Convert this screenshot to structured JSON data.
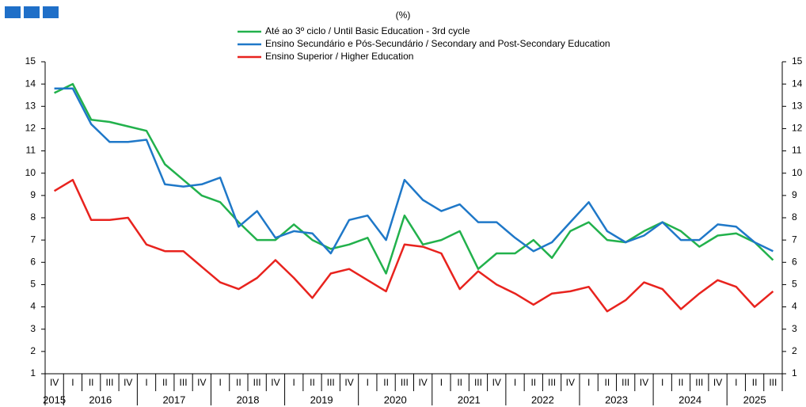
{
  "chart_data": {
    "type": "line",
    "subtitle": "(%)",
    "categories": [
      "IV",
      "I",
      "II",
      "III",
      "IV",
      "I",
      "II",
      "III",
      "IV",
      "I",
      "II",
      "III",
      "IV",
      "I",
      "II",
      "III",
      "IV",
      "I",
      "II",
      "III",
      "IV",
      "I",
      "II",
      "III",
      "IV",
      "I",
      "II",
      "III",
      "IV",
      "I",
      "II",
      "III",
      "IV",
      "I",
      "II",
      "III",
      "IV",
      "I",
      "II",
      "III"
    ],
    "years": [
      "2015",
      "2016",
      "2017",
      "2018",
      "2019",
      "2020",
      "2021",
      "2022",
      "2023",
      "2024",
      "2025"
    ],
    "series": [
      {
        "name": "Até ao 3º ciclo / Until Basic Education - 3rd cycle",
        "color": "#22b14c",
        "values": [
          13.6,
          14.0,
          12.4,
          12.3,
          12.1,
          11.9,
          10.4,
          9.7,
          9.0,
          8.7,
          7.8,
          7.0,
          7.0,
          7.7,
          7.0,
          6.6,
          6.8,
          7.1,
          5.5,
          8.1,
          6.8,
          7.0,
          7.4,
          5.7,
          6.4,
          6.4,
          7.0,
          6.2,
          7.4,
          7.8,
          7.0,
          6.9,
          7.4,
          7.8,
          7.4,
          6.7,
          7.2,
          7.3,
          6.9,
          6.1
        ]
      },
      {
        "name": "Ensino Secundário e Pós-Secundário / Secondary and Post-Secondary Education",
        "color": "#1f78c8",
        "values": [
          13.8,
          13.8,
          12.2,
          11.4,
          11.4,
          11.5,
          9.5,
          9.4,
          9.5,
          9.8,
          7.6,
          8.3,
          7.1,
          7.4,
          7.3,
          6.4,
          7.9,
          8.1,
          7.0,
          9.7,
          8.8,
          8.3,
          8.6,
          7.8,
          7.8,
          7.1,
          6.5,
          6.9,
          7.8,
          8.7,
          7.4,
          6.9,
          7.2,
          7.8,
          7.0,
          7.0,
          7.7,
          7.6,
          6.9,
          6.5
        ]
      },
      {
        "name": "Ensino Superior / Higher Education",
        "color": "#e8231e",
        "values": [
          9.2,
          9.7,
          7.9,
          7.9,
          8.0,
          6.8,
          6.5,
          6.5,
          5.8,
          5.1,
          4.8,
          5.3,
          6.1,
          5.3,
          4.4,
          5.5,
          5.7,
          5.2,
          4.7,
          6.8,
          6.7,
          6.4,
          4.8,
          5.6,
          5.0,
          4.6,
          4.1,
          4.6,
          4.7,
          4.9,
          3.8,
          4.3,
          5.1,
          4.8,
          3.9,
          4.6,
          5.2,
          4.9,
          4.0,
          4.7
        ]
      }
    ],
    "ylim": [
      1,
      15
    ],
    "yticks": [
      1,
      2,
      3,
      4,
      5,
      6,
      7,
      8,
      9,
      10,
      11,
      12,
      13,
      14,
      15
    ],
    "grid": false
  }
}
